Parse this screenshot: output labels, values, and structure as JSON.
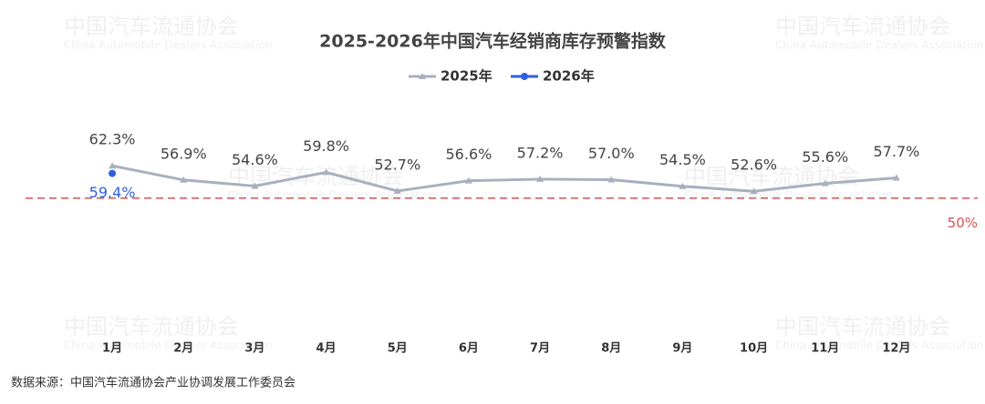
{
  "chart_data": {
    "type": "line",
    "title": "2025-2026年中国汽车经销商库存预警指数",
    "categories": [
      "1月",
      "2月",
      "3月",
      "4月",
      "5月",
      "6月",
      "7月",
      "8月",
      "9月",
      "10月",
      "11月",
      "12月"
    ],
    "series": [
      {
        "name": "2025年",
        "color": "#a9b0bd",
        "marker": "triangle",
        "values": [
          62.3,
          56.9,
          54.6,
          59.8,
          52.7,
          56.6,
          57.2,
          57.0,
          54.5,
          52.6,
          55.6,
          57.7
        ],
        "value_labels": [
          "62.3%",
          "56.9%",
          "54.6%",
          "59.8%",
          "52.7%",
          "56.6%",
          "57.2%",
          "57.0%",
          "54.5%",
          "52.6%",
          "55.6%",
          "57.7%"
        ]
      },
      {
        "name": "2026年",
        "color": "#2f5fe0",
        "marker": "circle",
        "values": [
          59.4,
          null,
          null,
          null,
          null,
          null,
          null,
          null,
          null,
          null,
          null,
          null
        ],
        "value_labels": [
          "59.4%",
          null,
          null,
          null,
          null,
          null,
          null,
          null,
          null,
          null,
          null,
          null
        ]
      }
    ],
    "ylim": [
      0,
      70
    ],
    "reference_line": {
      "value": 50,
      "label": "50%",
      "color": "#d9534f"
    },
    "legend": "top",
    "watermark": {
      "cn": "中国汽车流通协会",
      "en": "China Automobile Dealers Association"
    },
    "source": "数据来源：中国汽车流通协会产业协调发展工作委员会"
  }
}
